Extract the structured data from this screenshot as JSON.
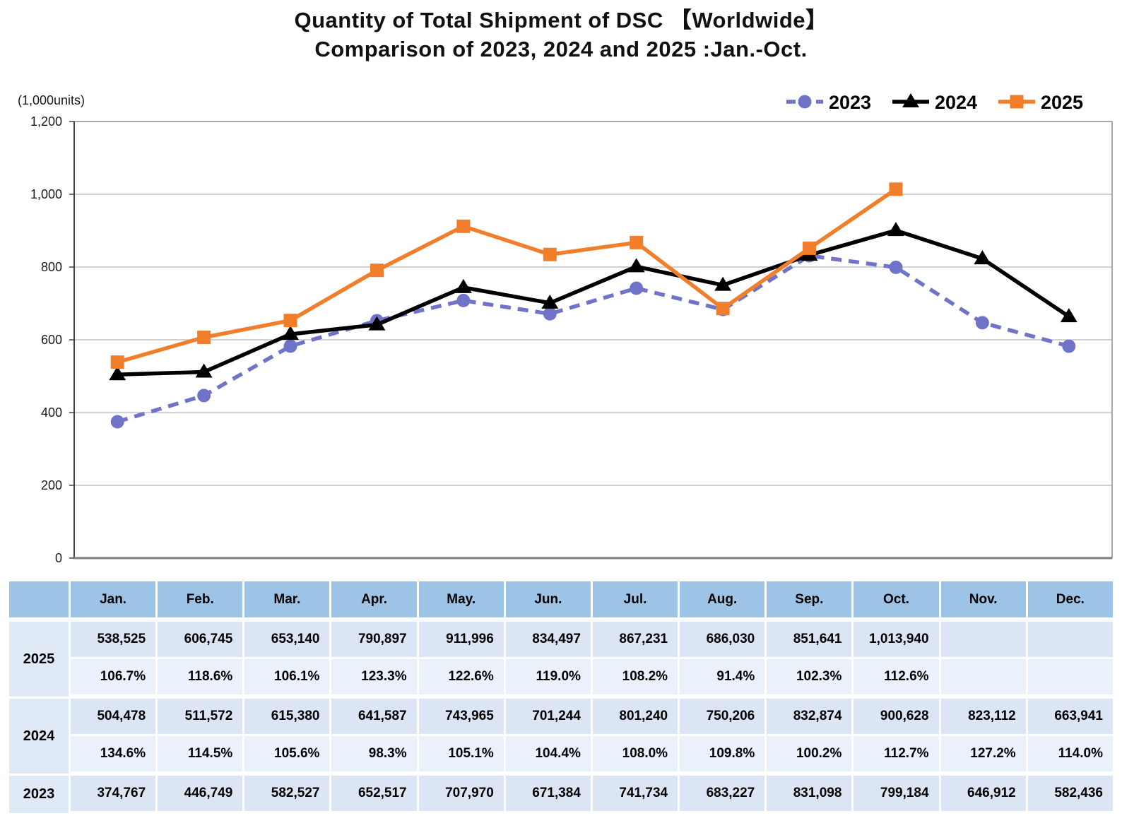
{
  "title": {
    "line1": "Quantity of Total Shipment of DSC 【Worldwide】",
    "line2": "Comparison of 2023, 2024 and 2025 :Jan.-Oct."
  },
  "axis": {
    "unit_label": "(1,000units)",
    "y_ticks": [
      {
        "v": 0,
        "label": "0"
      },
      {
        "v": 200,
        "label": "200"
      },
      {
        "v": 400,
        "label": "400"
      },
      {
        "v": 600,
        "label": "600"
      },
      {
        "v": 800,
        "label": "800"
      },
      {
        "v": 1000,
        "label": "1,000"
      },
      {
        "v": 1200,
        "label": "1,200"
      }
    ]
  },
  "colors": {
    "series_2023": "#6F74C9",
    "series_2024": "#000000",
    "series_2025": "#F07E2A",
    "gridline": "#A6A6A6",
    "plot_border": "#8C8C8C",
    "y_axis": "#404040",
    "x_axis": "#7F7F7F",
    "table_header_bg": "#9DC3E6",
    "table_qty_bg": "#DBE5F4",
    "table_pct_bg": "#EAF1FB",
    "table_year_bg": "#E0EAF7"
  },
  "chart_data": {
    "type": "line",
    "title": "Quantity of Total Shipment of DSC 【Worldwide】 Comparison of 2023, 2024 and 2025 :Jan.-Oct.",
    "ylabel": "(1,000units)",
    "xlabel": "",
    "x": [
      "Jan.",
      "Feb.",
      "Mar.",
      "Apr.",
      "May.",
      "Jun.",
      "Jul.",
      "Aug.",
      "Sep.",
      "Oct.",
      "Nov.",
      "Dec."
    ],
    "ylim": [
      0,
      1200
    ],
    "grid": "horizontal",
    "legend_position": "top-right",
    "series": [
      {
        "name": "2023",
        "color": "#6F74C9",
        "line_style": "dashed",
        "marker": "circle",
        "values": [
          374.767,
          446.749,
          582.527,
          652.517,
          707.97,
          671.384,
          741.734,
          683.227,
          831.098,
          799.184,
          646.912,
          582.436
        ]
      },
      {
        "name": "2024",
        "color": "#000000",
        "line_style": "solid",
        "marker": "triangle",
        "values": [
          504.478,
          511.572,
          615.38,
          641.587,
          743.965,
          701.244,
          801.24,
          750.206,
          832.874,
          900.628,
          823.112,
          663.941
        ]
      },
      {
        "name": "2025",
        "color": "#F07E2A",
        "line_style": "solid",
        "marker": "square",
        "values": [
          538.525,
          606.745,
          653.14,
          790.897,
          911.996,
          834.497,
          867.231,
          686.03,
          851.641,
          1013.94
        ]
      }
    ]
  },
  "table": {
    "months": [
      "Jan.",
      "Feb.",
      "Mar.",
      "Apr.",
      "May.",
      "Jun.",
      "Jul.",
      "Aug.",
      "Sep.",
      "Oct.",
      "Nov.",
      "Dec."
    ],
    "rows": [
      {
        "year": "2025",
        "quantity": [
          "538,525",
          "606,745",
          "653,140",
          "790,897",
          "911,996",
          "834,497",
          "867,231",
          "686,030",
          "851,641",
          "1,013,940",
          "",
          ""
        ],
        "yoy": [
          "106.7%",
          "118.6%",
          "106.1%",
          "123.3%",
          "122.6%",
          "119.0%",
          "108.2%",
          "91.4%",
          "102.3%",
          "112.6%",
          "",
          ""
        ]
      },
      {
        "year": "2024",
        "quantity": [
          "504,478",
          "511,572",
          "615,380",
          "641,587",
          "743,965",
          "701,244",
          "801,240",
          "750,206",
          "832,874",
          "900,628",
          "823,112",
          "663,941"
        ],
        "yoy": [
          "134.6%",
          "114.5%",
          "105.6%",
          "98.3%",
          "105.1%",
          "104.4%",
          "108.0%",
          "109.8%",
          "100.2%",
          "112.7%",
          "127.2%",
          "114.0%"
        ]
      },
      {
        "year": "2023",
        "quantity": [
          "374,767",
          "446,749",
          "582,527",
          "652,517",
          "707,970",
          "671,384",
          "741,734",
          "683,227",
          "831,098",
          "799,184",
          "646,912",
          "582,436"
        ],
        "yoy": null
      }
    ]
  }
}
